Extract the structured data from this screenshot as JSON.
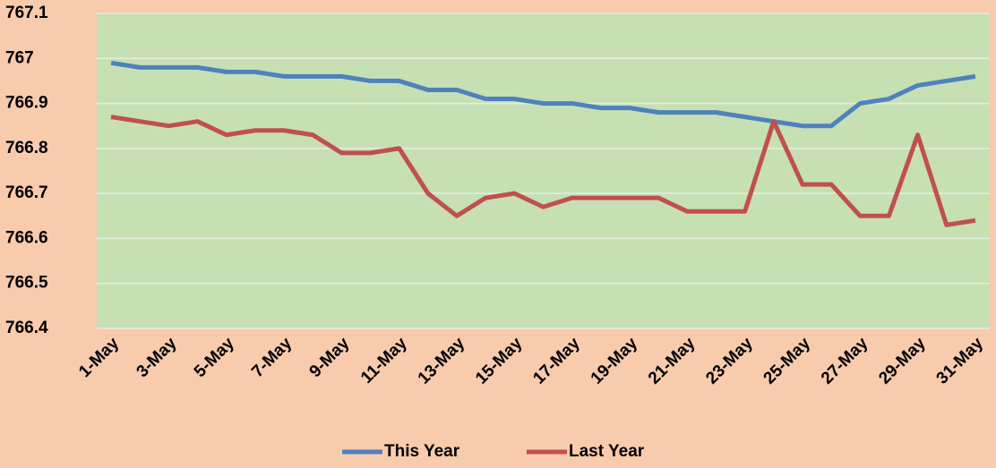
{
  "chart_data": {
    "type": "line",
    "categories": [
      "1-May",
      null,
      "3-May",
      null,
      "5-May",
      null,
      "7-May",
      null,
      "9-May",
      null,
      "11-May",
      null,
      "13-May",
      null,
      "15-May",
      null,
      "17-May",
      null,
      "19-May",
      null,
      "21-May",
      null,
      "23-May",
      null,
      "25-May",
      null,
      "27-May",
      null,
      "29-May",
      null,
      "31-May"
    ],
    "series": [
      {
        "name": "This Year",
        "color": "#4f81bd",
        "values": [
          766.99,
          766.98,
          766.98,
          766.98,
          766.97,
          766.97,
          766.96,
          766.96,
          766.96,
          766.95,
          766.95,
          766.93,
          766.93,
          766.91,
          766.91,
          766.9,
          766.9,
          766.89,
          766.89,
          766.88,
          766.88,
          766.88,
          766.87,
          766.86,
          766.85,
          766.85,
          766.9,
          766.91,
          766.94,
          766.95,
          766.96
        ]
      },
      {
        "name": "Last Year",
        "color": "#c0504d",
        "values": [
          766.87,
          766.86,
          766.85,
          766.86,
          766.83,
          766.84,
          766.84,
          766.83,
          766.79,
          766.79,
          766.8,
          766.7,
          766.65,
          766.69,
          766.7,
          766.67,
          766.69,
          766.69,
          766.69,
          766.69,
          766.66,
          766.66,
          766.66,
          766.86,
          766.72,
          766.72,
          766.65,
          766.65,
          766.83,
          766.63,
          766.64
        ]
      }
    ],
    "ylim": [
      766.4,
      767.1
    ],
    "yticks": [
      766.4,
      766.5,
      766.6,
      766.7,
      766.8,
      766.9,
      767,
      767.1
    ],
    "grid": true,
    "legend": "bottom"
  }
}
